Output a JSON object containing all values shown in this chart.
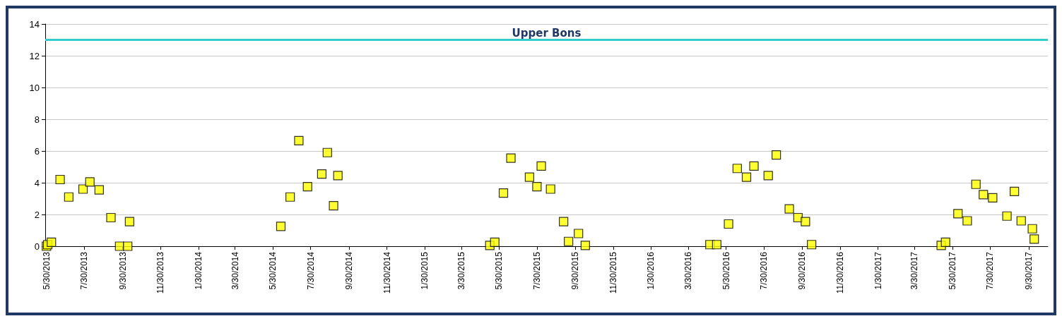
{
  "chart_data": {
    "type": "scatter",
    "x": [
      "2013-05-30",
      "2013-06-01",
      "2013-06-07",
      "2013-06-21",
      "2013-07-05",
      "2013-07-28",
      "2013-08-08",
      "2013-08-23",
      "2013-09-11",
      "2013-09-25",
      "2013-10-08",
      "2013-10-11",
      "2014-06-12",
      "2014-06-27",
      "2014-07-11",
      "2014-07-25",
      "2014-08-17",
      "2014-08-26",
      "2014-09-05",
      "2014-09-12",
      "2015-05-15",
      "2015-05-23",
      "2015-06-06",
      "2015-06-18",
      "2015-07-18",
      "2015-07-30",
      "2015-08-06",
      "2015-08-21",
      "2015-09-11",
      "2015-09-19",
      "2015-10-05",
      "2015-10-16",
      "2016-05-04",
      "2016-05-15",
      "2016-06-03",
      "2016-06-17",
      "2016-07-02",
      "2016-07-14",
      "2016-08-06",
      "2016-08-19",
      "2016-09-09",
      "2016-09-23",
      "2016-10-05",
      "2016-10-15",
      "2017-05-12",
      "2017-05-19",
      "2017-06-08",
      "2017-06-23",
      "2017-07-07",
      "2017-07-19",
      "2017-08-03",
      "2017-08-26",
      "2017-09-07",
      "2017-09-18",
      "2017-10-06",
      "2017-10-09"
    ],
    "series": [
      {
        "color": "#ffff00",
        "values": [
          0,
          0.1,
          0.25,
          4.2,
          3.1,
          3.6,
          4.05,
          3.55,
          1.8,
          0,
          0,
          1.55,
          1.25,
          3.1,
          6.65,
          3.75,
          4.55,
          5.9,
          2.55,
          4.45,
          0.05,
          0.25,
          3.35,
          5.55,
          4.35,
          3.75,
          5.05,
          3.6,
          1.55,
          0.3,
          0.8,
          0.05,
          0.1,
          0.1,
          1.4,
          4.9,
          4.35,
          5.05,
          4.45,
          5.75,
          2.35,
          1.8,
          1.55,
          0.1,
          0.05,
          0.25,
          2.05,
          1.6,
          3.9,
          3.25,
          3.05,
          1.9,
          3.45,
          1.6,
          1.1,
          0.45
        ]
      }
    ],
    "marker": "square",
    "xlim": [
      "2013-05-28",
      "2017-10-31"
    ],
    "xticks": [
      {
        "value": "2013-05-30",
        "label": "5/30/2013"
      },
      {
        "value": "2013-07-30",
        "label": "7/30/2013"
      },
      {
        "value": "2013-09-30",
        "label": "9/30/2013"
      },
      {
        "value": "2013-11-30",
        "label": "11/30/2013"
      },
      {
        "value": "2014-01-30",
        "label": "1/30/2014"
      },
      {
        "value": "2014-03-30",
        "label": "3/30/2014"
      },
      {
        "value": "2014-05-30",
        "label": "5/30/2014"
      },
      {
        "value": "2014-07-30",
        "label": "7/30/2014"
      },
      {
        "value": "2014-09-30",
        "label": "9/30/2014"
      },
      {
        "value": "2014-11-30",
        "label": "11/30/2014"
      },
      {
        "value": "2015-01-30",
        "label": "1/30/2015"
      },
      {
        "value": "2015-03-30",
        "label": "3/30/2015"
      },
      {
        "value": "2015-05-30",
        "label": "5/30/2015"
      },
      {
        "value": "2015-07-30",
        "label": "7/30/2015"
      },
      {
        "value": "2015-09-30",
        "label": "9/30/2015"
      },
      {
        "value": "2015-11-30",
        "label": "11/30/2015"
      },
      {
        "value": "2016-01-30",
        "label": "1/30/2016"
      },
      {
        "value": "2016-03-30",
        "label": "3/30/2016"
      },
      {
        "value": "2016-05-30",
        "label": "5/30/2016"
      },
      {
        "value": "2016-07-30",
        "label": "7/30/2016"
      },
      {
        "value": "2016-09-30",
        "label": "9/30/2016"
      },
      {
        "value": "2016-11-30",
        "label": "11/30/2016"
      },
      {
        "value": "2017-01-30",
        "label": "1/30/2017"
      },
      {
        "value": "2017-03-30",
        "label": "3/30/2017"
      },
      {
        "value": "2017-05-30",
        "label": "5/30/2017"
      },
      {
        "value": "2017-07-30",
        "label": "7/30/2017"
      },
      {
        "value": "2017-09-30",
        "label": "9/30/2017"
      }
    ],
    "ylim": [
      0,
      14
    ],
    "yticks": [
      0,
      2,
      4,
      6,
      8,
      10,
      12,
      14
    ],
    "grid": "y",
    "ref_lines": [
      {
        "axis": "y",
        "value": 13,
        "label": "Upper Bons",
        "color": "#33cccc"
      }
    ]
  }
}
